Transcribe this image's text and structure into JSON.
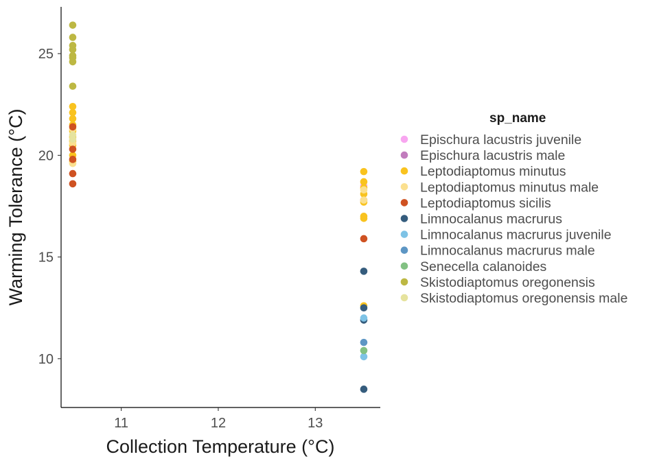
{
  "chart_data": {
    "type": "scatter",
    "xlabel": "Collection Temperature (°C)",
    "ylabel": "Warming Tolerance (°C)",
    "xlim": [
      10.38,
      13.67
    ],
    "ylim": [
      7.6,
      27.3
    ],
    "xticks": [
      11,
      12,
      13
    ],
    "yticks": [
      10,
      15,
      20,
      25
    ],
    "grid": false,
    "legend": {
      "title": "sp_name",
      "position": "right"
    },
    "series": [
      {
        "name": "Epischura lacustris juvenile",
        "color": "#F8A6F0",
        "points": [
          [
            13.5,
            18.5
          ]
        ]
      },
      {
        "name": "Epischura lacustris male",
        "color": "#C17CBD",
        "points": [
          [
            13.5,
            17.8
          ]
        ]
      },
      {
        "name": "Leptodiaptomus minutus",
        "color": "#F9C31F",
        "points": [
          [
            10.5,
            22.4
          ],
          [
            10.5,
            22.1
          ],
          [
            10.5,
            21.8
          ],
          [
            10.5,
            21.5
          ],
          [
            10.5,
            21.2
          ],
          [
            10.5,
            20.9
          ],
          [
            10.5,
            20.7
          ],
          [
            10.5,
            20.5
          ],
          [
            10.5,
            20.0
          ],
          [
            10.5,
            19.7
          ],
          [
            13.5,
            19.2
          ],
          [
            13.5,
            18.7
          ],
          [
            13.5,
            18.4
          ],
          [
            13.5,
            18.1
          ],
          [
            13.5,
            17.7
          ],
          [
            13.5,
            17.0
          ],
          [
            13.5,
            16.9
          ],
          [
            13.5,
            12.6
          ]
        ]
      },
      {
        "name": "Leptodiaptomus minutus male",
        "color": "#FBE08F",
        "points": [
          [
            10.5,
            21.3
          ],
          [
            10.5,
            20.6
          ],
          [
            10.5,
            19.6
          ],
          [
            13.5,
            18.3
          ],
          [
            13.5,
            17.8
          ]
        ]
      },
      {
        "name": "Leptodiaptomus sicilis",
        "color": "#CF5222",
        "points": [
          [
            10.5,
            21.4
          ],
          [
            10.5,
            20.3
          ],
          [
            10.5,
            19.8
          ],
          [
            10.5,
            19.1
          ],
          [
            10.5,
            18.6
          ],
          [
            13.5,
            15.9
          ]
        ]
      },
      {
        "name": "Limnocalanus macrurus",
        "color": "#355C7D",
        "points": [
          [
            13.5,
            14.3
          ],
          [
            13.5,
            12.5
          ],
          [
            13.5,
            11.9
          ],
          [
            13.5,
            8.5
          ]
        ]
      },
      {
        "name": "Limnocalanus macrurus juvenile",
        "color": "#7EC3E6",
        "points": [
          [
            13.5,
            12.0
          ],
          [
            13.5,
            10.1
          ]
        ]
      },
      {
        "name": "Limnocalanus macrurus male",
        "color": "#5D96C4",
        "points": [
          [
            13.5,
            10.8
          ]
        ]
      },
      {
        "name": "Senecella calanoides",
        "color": "#82C183",
        "points": [
          [
            13.5,
            10.4
          ]
        ]
      },
      {
        "name": "Skistodiaptomus oregonensis",
        "color": "#BDB843",
        "points": [
          [
            10.5,
            26.4
          ],
          [
            10.5,
            25.8
          ],
          [
            10.5,
            25.4
          ],
          [
            10.5,
            25.2
          ],
          [
            10.5,
            24.9
          ],
          [
            10.5,
            24.8
          ],
          [
            10.5,
            24.6
          ],
          [
            10.5,
            23.4
          ]
        ]
      },
      {
        "name": "Skistodiaptomus oregonensis male",
        "color": "#E6E39E",
        "points": [
          [
            10.5,
            21.0
          ],
          [
            10.5,
            20.8
          ]
        ]
      }
    ]
  }
}
